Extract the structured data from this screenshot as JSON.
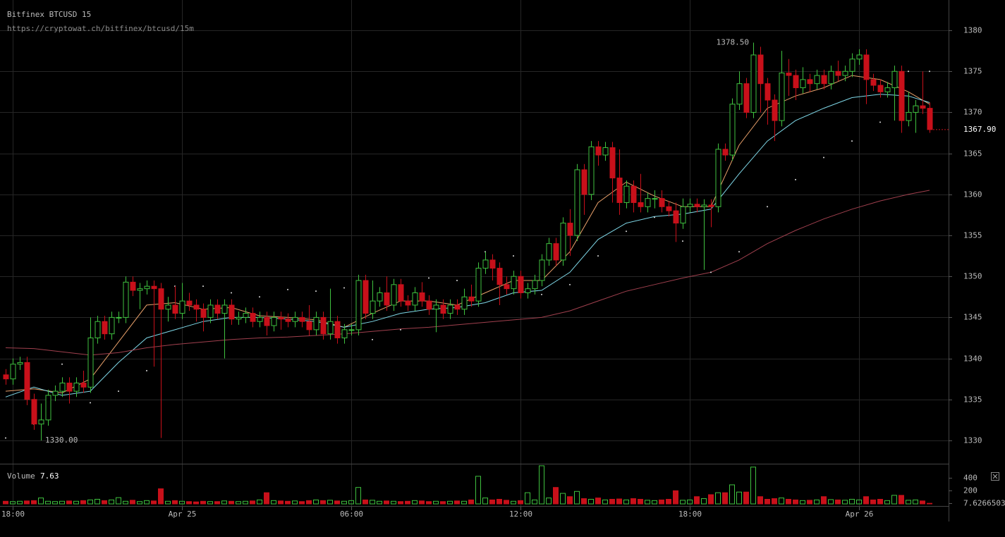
{
  "chart_data": {
    "type": "candlestick",
    "title": "Bitfinex BTCUSD 15",
    "subtitle": "https://cryptowat.ch/bitfinex/btcusd/15m",
    "colors": {
      "up": "#3fc13f",
      "down": "#c8101a"
    },
    "grid": true,
    "xlim": [
      -0.45,
      33.175
    ],
    "xticks": [
      {
        "value": 0,
        "label": "18:00"
      },
      {
        "value": 6,
        "label": "Apr 25"
      },
      {
        "value": 12,
        "label": "06:00"
      },
      {
        "value": 18,
        "label": "12:00"
      },
      {
        "value": 24,
        "label": "18:00"
      },
      {
        "value": 30,
        "label": "Apr 26"
      }
    ],
    "ylim": [
      1327.85,
      1383.7
    ],
    "yticks": [
      1330,
      1335,
      1340,
      1345,
      1350,
      1355,
      1360,
      1365,
      1370,
      1375,
      1380
    ],
    "last_label": "1367.90",
    "annotations": [
      {
        "label": "1378.50",
        "value": 1378.5
      },
      {
        "label": "1330.00",
        "value": 1330
      }
    ],
    "x": [
      -0.25,
      0,
      0.25,
      0.5,
      0.75,
      1,
      1.25,
      1.5,
      1.75,
      2,
      2.25,
      2.5,
      2.75,
      3,
      3.25,
      3.5,
      3.75,
      4,
      4.25,
      4.5,
      4.75,
      5,
      5.25,
      5.5,
      5.75,
      6,
      6.25,
      6.5,
      6.75,
      7,
      7.25,
      7.5,
      7.75,
      8,
      8.25,
      8.5,
      8.75,
      9,
      9.25,
      9.5,
      9.75,
      10,
      10.25,
      10.5,
      10.75,
      11,
      11.25,
      11.5,
      11.75,
      12,
      12.25,
      12.5,
      12.75,
      13,
      13.25,
      13.5,
      13.75,
      14,
      14.25,
      14.5,
      14.75,
      15,
      15.25,
      15.5,
      15.75,
      16,
      16.25,
      16.5,
      16.75,
      17,
      17.25,
      17.5,
      17.75,
      18,
      18.25,
      18.5,
      18.75,
      19,
      19.25,
      19.5,
      19.75,
      20,
      20.25,
      20.5,
      20.75,
      21,
      21.25,
      21.5,
      21.75,
      22,
      22.25,
      22.5,
      22.75,
      23,
      23.25,
      23.5,
      23.75,
      24,
      24.25,
      24.5,
      24.75,
      25,
      25.25,
      25.5,
      25.75,
      26,
      26.25,
      26.5,
      26.75,
      27,
      27.25,
      27.5,
      27.75,
      28,
      28.25,
      28.5,
      28.75,
      29,
      29.25,
      29.5,
      29.75,
      30,
      30.25,
      30.5,
      30.75,
      31,
      31.25,
      31.5,
      31.75,
      32,
      32.25,
      32.5
    ],
    "open": [
      1338,
      1337.5,
      1339.3,
      1339.5,
      1335,
      1332,
      1332.5,
      1335.5,
      1336,
      1337,
      1336,
      1337,
      1336.5,
      1342.5,
      1344.5,
      1343,
      1345,
      1345,
      1349.3,
      1348.3,
      1348.5,
      1348.8,
      1348.5,
      1346,
      1346.5,
      1345.5,
      1347,
      1346.5,
      1346,
      1345,
      1346.5,
      1345.5,
      1346.5,
      1344.8,
      1345,
      1345.5,
      1344.5,
      1345,
      1344,
      1345,
      1344.8,
      1344.5,
      1345,
      1344.5,
      1343.5,
      1345,
      1343,
      1344.5,
      1342.5,
      1343.5,
      1343.5,
      1349.5,
      1345.5,
      1347,
      1348,
      1346.5,
      1349,
      1347,
      1346.5,
      1348,
      1347,
      1346,
      1346.5,
      1345.5,
      1346.5,
      1346,
      1347.5,
      1347,
      1351,
      1352,
      1351,
      1349,
      1348.5,
      1350,
      1348,
      1348.5,
      1349.5,
      1352,
      1354,
      1352,
      1356.5,
      1355,
      1363,
      1360,
      1365.8,
      1364.8,
      1365.7,
      1362,
      1359,
      1361,
      1359,
      1358.5,
      1359.5,
      1359.5,
      1358.5,
      1358,
      1356.5,
      1358.5,
      1358.8,
      1358.5,
      1358.7,
      1358.5,
      1365.5,
      1364.8,
      1371,
      1373.5,
      1370,
      1377,
      1373.5,
      1371.5,
      1369,
      1374.8,
      1374.5,
      1373,
      1374,
      1373.5,
      1374.5,
      1373.5,
      1375,
      1374.5,
      1375,
      1376.5,
      1377,
      1374,
      1373.3,
      1372.5,
      1373,
      1375,
      1369,
      1370,
      1370.8,
      1370.5
    ],
    "high": [
      1338.7,
      1340,
      1340.2,
      1340.2,
      1335.7,
      1334.5,
      1336.2,
      1336.7,
      1337.7,
      1337.7,
      1337.7,
      1338.5,
      1345,
      1345.2,
      1345.2,
      1345.7,
      1345.7,
      1350,
      1350,
      1349.2,
      1349.5,
      1349.5,
      1349.2,
      1347.5,
      1348.8,
      1349.2,
      1348,
      1347.2,
      1346.7,
      1347.2,
      1347.2,
      1347.2,
      1347.2,
      1345.7,
      1346.2,
      1346.2,
      1345.7,
      1345.7,
      1345.7,
      1345.7,
      1345.5,
      1345.7,
      1345.7,
      1346.5,
      1345.7,
      1345.7,
      1348.5,
      1345.2,
      1344.2,
      1344.2,
      1350.2,
      1350.2,
      1349.5,
      1348.7,
      1350,
      1349.7,
      1349.7,
      1347.7,
      1348.7,
      1349.3,
      1347.7,
      1347.2,
      1347.2,
      1347.2,
      1347.2,
      1348.5,
      1349,
      1351.7,
      1353,
      1352.7,
      1351.7,
      1350,
      1350.7,
      1350.7,
      1349.2,
      1350.2,
      1352.7,
      1354.7,
      1354.7,
      1357.2,
      1358.2,
      1363.7,
      1363.7,
      1366.5,
      1366.5,
      1366.4,
      1366.4,
      1365.5,
      1361.7,
      1361.7,
      1362.5,
      1360.2,
      1360.5,
      1360.5,
      1359.2,
      1359,
      1359.5,
      1359.5,
      1359.5,
      1359.4,
      1359.4,
      1366.2,
      1366.2,
      1371.7,
      1375,
      1374.2,
      1378.5,
      1378,
      1374.2,
      1372.2,
      1377.5,
      1376.5,
      1375.2,
      1375.5,
      1374.7,
      1375.2,
      1375.2,
      1375.7,
      1376.3,
      1375.7,
      1377.2,
      1377.7,
      1377.7,
      1374.7,
      1374,
      1373.7,
      1375.7,
      1375.7,
      1372.5,
      1371.5,
      1375,
      1371.2
    ],
    "low": [
      1336.8,
      1336.8,
      1338.6,
      1334.3,
      1331.3,
      1330,
      1331.8,
      1334.8,
      1335.3,
      1334.5,
      1335.3,
      1335.8,
      1335.8,
      1341.8,
      1342.3,
      1342.3,
      1344.3,
      1344.3,
      1347.6,
      1346,
      1347.8,
      1339,
      1330.3,
      1344.5,
      1344.8,
      1344.8,
      1345.8,
      1344.5,
      1343.3,
      1344.3,
      1344.8,
      1340,
      1344.1,
      1344.1,
      1344.3,
      1343.8,
      1343.8,
      1342.8,
      1343.3,
      1343.5,
      1343.8,
      1343.8,
      1343.8,
      1342.8,
      1342.8,
      1342.3,
      1342.3,
      1341.8,
      1341.8,
      1342.8,
      1342.8,
      1344.8,
      1344.8,
      1346.3,
      1345.8,
      1345.8,
      1346.3,
      1345.8,
      1345.8,
      1346.3,
      1345.3,
      1343.2,
      1344.8,
      1344.8,
      1345.3,
      1345.3,
      1346.3,
      1346.3,
      1350.3,
      1349.5,
      1346.5,
      1347.8,
      1347.8,
      1347.3,
      1347.3,
      1347.8,
      1348.8,
      1351.3,
      1351.3,
      1351.3,
      1352.5,
      1354.3,
      1357.5,
      1359.3,
      1363.5,
      1364.1,
      1359,
      1357.5,
      1358.3,
      1357.8,
      1357.8,
      1357.8,
      1358.3,
      1357.8,
      1357.3,
      1354.2,
      1355.8,
      1357.8,
      1357.8,
      1350.8,
      1356,
      1357.8,
      1364.1,
      1364.1,
      1370.3,
      1369.3,
      1369.3,
      1370,
      1368.5,
      1366.5,
      1368.3,
      1372,
      1371.5,
      1372.3,
      1372.5,
      1372.8,
      1372.8,
      1372.8,
      1373.8,
      1373.8,
      1374.3,
      1375.8,
      1371,
      1372.6,
      1371.8,
      1371.8,
      1369,
      1367.5,
      1368.3,
      1367.5,
      1369.8,
      1367.5
    ],
    "close": [
      1337.5,
      1339.3,
      1339.5,
      1335,
      1332,
      1332.5,
      1335.5,
      1336,
      1337,
      1336,
      1337,
      1336.5,
      1342.5,
      1344.5,
      1343,
      1345,
      1345,
      1349.3,
      1348.3,
      1348.5,
      1348.8,
      1348.5,
      1346,
      1346.5,
      1345.5,
      1347,
      1346.5,
      1346,
      1345,
      1346.5,
      1345.5,
      1346.5,
      1344.8,
      1345,
      1345.5,
      1344.5,
      1345,
      1344,
      1345,
      1344.8,
      1344.5,
      1345,
      1344.5,
      1343.5,
      1345,
      1343,
      1344.5,
      1342.5,
      1343.5,
      1343.5,
      1349.5,
      1345.5,
      1347,
      1348,
      1346.5,
      1349,
      1347,
      1346.5,
      1348,
      1347,
      1346,
      1346.5,
      1345.5,
      1346.5,
      1346,
      1347.5,
      1347,
      1351,
      1352,
      1351,
      1349,
      1348.5,
      1350,
      1348,
      1348.5,
      1349.5,
      1352,
      1354,
      1352,
      1356.5,
      1355,
      1363,
      1360,
      1365.8,
      1364.8,
      1365.7,
      1362,
      1359,
      1361,
      1359,
      1358.5,
      1359.5,
      1359.5,
      1358.5,
      1358,
      1356.5,
      1358.5,
      1358.8,
      1358.5,
      1358.7,
      1358.5,
      1365.5,
      1364.8,
      1371,
      1373.5,
      1370,
      1377,
      1373.5,
      1371.5,
      1369,
      1374.8,
      1374.5,
      1373,
      1374,
      1373.5,
      1374.5,
      1373.5,
      1375,
      1374.5,
      1375,
      1376.5,
      1377,
      1374,
      1373.3,
      1372.5,
      1373,
      1375,
      1369,
      1370,
      1370.8,
      1370.5,
      1367.9
    ],
    "overlays": {
      "x": [
        -0.25,
        0.75,
        1.75,
        2.75,
        3.75,
        4.75,
        5.75,
        6.75,
        7.75,
        8.75,
        9.75,
        10.75,
        11.75,
        12.75,
        13.75,
        14.75,
        15.75,
        16.75,
        17.75,
        18.75,
        19.75,
        20.75,
        21.75,
        22.75,
        23.75,
        24.75,
        25.75,
        26.75,
        27.75,
        28.75,
        29.75,
        30.75,
        31.75,
        32.5
      ],
      "series": [
        {
          "style": "line",
          "color": "#e8a06a",
          "values": [
            1336,
            1336.3,
            1335.8,
            1337.5,
            1342,
            1346.5,
            1346.8,
            1346,
            1346.2,
            1345.2,
            1345,
            1344.7,
            1343.8,
            1345.5,
            1347,
            1347,
            1346.5,
            1348,
            1349.5,
            1349.5,
            1353,
            1359,
            1361.5,
            1359.8,
            1358.5,
            1358.5,
            1366,
            1370.5,
            1372,
            1373,
            1374.5,
            1374,
            1372.5,
            1371
          ]
        },
        {
          "style": "line",
          "color": "#7fd8e8",
          "values": [
            1335.3,
            1336.5,
            1335.5,
            1336,
            1339.5,
            1342.5,
            1343.5,
            1344.5,
            1345,
            1345,
            1344.8,
            1344.5,
            1343.8,
            1344.5,
            1345.5,
            1346,
            1346.2,
            1346.8,
            1348,
            1348.3,
            1350.5,
            1354.5,
            1356.5,
            1357.3,
            1357.6,
            1358.2,
            1362.5,
            1366.5,
            1369,
            1370.5,
            1371.8,
            1372.2,
            1372,
            1371.2
          ]
        },
        {
          "style": "line",
          "color": "#a0404e",
          "values": [
            1341.3,
            1341.2,
            1340.8,
            1340.4,
            1340.7,
            1341.3,
            1341.7,
            1342,
            1342.3,
            1342.5,
            1342.6,
            1342.8,
            1343,
            1343.3,
            1343.6,
            1343.8,
            1344.1,
            1344.4,
            1344.7,
            1345,
            1345.8,
            1347,
            1348.2,
            1349,
            1349.8,
            1350.5,
            1352,
            1354,
            1355.6,
            1357,
            1358.2,
            1359.2,
            1360,
            1360.5
          ]
        },
        {
          "style": "dots",
          "color": "#dddddd",
          "values": [
            1330.3,
            1332,
            1339.3,
            1334.6,
            1336,
            1338.5,
            1348.8,
            1348.8,
            1348,
            1347.5,
            1348.4,
            1348.2,
            1348.6,
            1342.3,
            1343.5,
            1349.8,
            1349.5,
            1353,
            1352.5,
            1347.8,
            1349,
            1352.5,
            1355.5,
            1357.2,
            1354.3,
            1350.5,
            1353,
            1358.5,
            1361.8,
            1364.5,
            1366.5,
            1368.8,
            1375,
            1375
          ]
        }
      ]
    },
    "volume": {
      "label": "Volume",
      "last_value_label": "7.63",
      "ylim": [
        0,
        590
      ],
      "yticks": [
        400,
        200,
        7.6266503
      ],
      "values": [
        40,
        35,
        40,
        45,
        50,
        90,
        40,
        35,
        40,
        45,
        40,
        50,
        60,
        70,
        50,
        60,
        95,
        40,
        55,
        35,
        50,
        45,
        230,
        40,
        50,
        40,
        35,
        30,
        40,
        35,
        35,
        45,
        40,
        35,
        40,
        45,
        60,
        170,
        50,
        45,
        40,
        45,
        35,
        50,
        60,
        50,
        55,
        45,
        40,
        50,
        250,
        60,
        55,
        40,
        45,
        40,
        35,
        40,
        50,
        45,
        35,
        40,
        35,
        40,
        45,
        40,
        60,
        420,
        90,
        60,
        70,
        55,
        40,
        50,
        170,
        60,
        580,
        90,
        250,
        160,
        110,
        190,
        80,
        70,
        90,
        60,
        70,
        75,
        60,
        80,
        70,
        55,
        50,
        60,
        70,
        200,
        55,
        60,
        110,
        80,
        140,
        170,
        170,
        290,
        180,
        180,
        560,
        110,
        70,
        80,
        90,
        70,
        60,
        50,
        55,
        60,
        110,
        65,
        60,
        55,
        70,
        60,
        110,
        60,
        70,
        50,
        130,
        130,
        55,
        60,
        45,
        7.6266503
      ]
    }
  }
}
